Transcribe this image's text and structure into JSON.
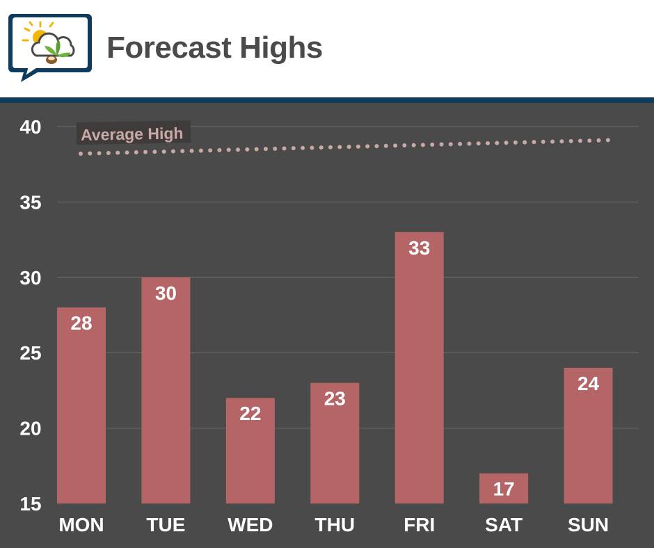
{
  "header": {
    "title": "Forecast Highs",
    "logo_icon": "weather-sun-cloud-leaf-icon"
  },
  "colors": {
    "header_bg": "#ffffff",
    "accent_rule": "#0f3b5c",
    "chart_bg": "#4a4a4a",
    "bar": "#b56565",
    "average_line": "#c9a9a6",
    "text": "#ffffff",
    "title_text": "#4a4a4a"
  },
  "chart_data": {
    "type": "bar",
    "title": "Forecast Highs",
    "categories": [
      "MON",
      "TUE",
      "WED",
      "THU",
      "FRI",
      "SAT",
      "SUN"
    ],
    "values": [
      28,
      30,
      22,
      23,
      33,
      17,
      24
    ],
    "ylim": [
      15,
      40
    ],
    "yticks": [
      15,
      20,
      25,
      30,
      35,
      40
    ],
    "grid": true,
    "data_labels": true,
    "xlabel": "",
    "ylabel": "",
    "average_line": {
      "label": "Average High",
      "style": "dotted",
      "start": 38.2,
      "end": 39.1
    }
  }
}
